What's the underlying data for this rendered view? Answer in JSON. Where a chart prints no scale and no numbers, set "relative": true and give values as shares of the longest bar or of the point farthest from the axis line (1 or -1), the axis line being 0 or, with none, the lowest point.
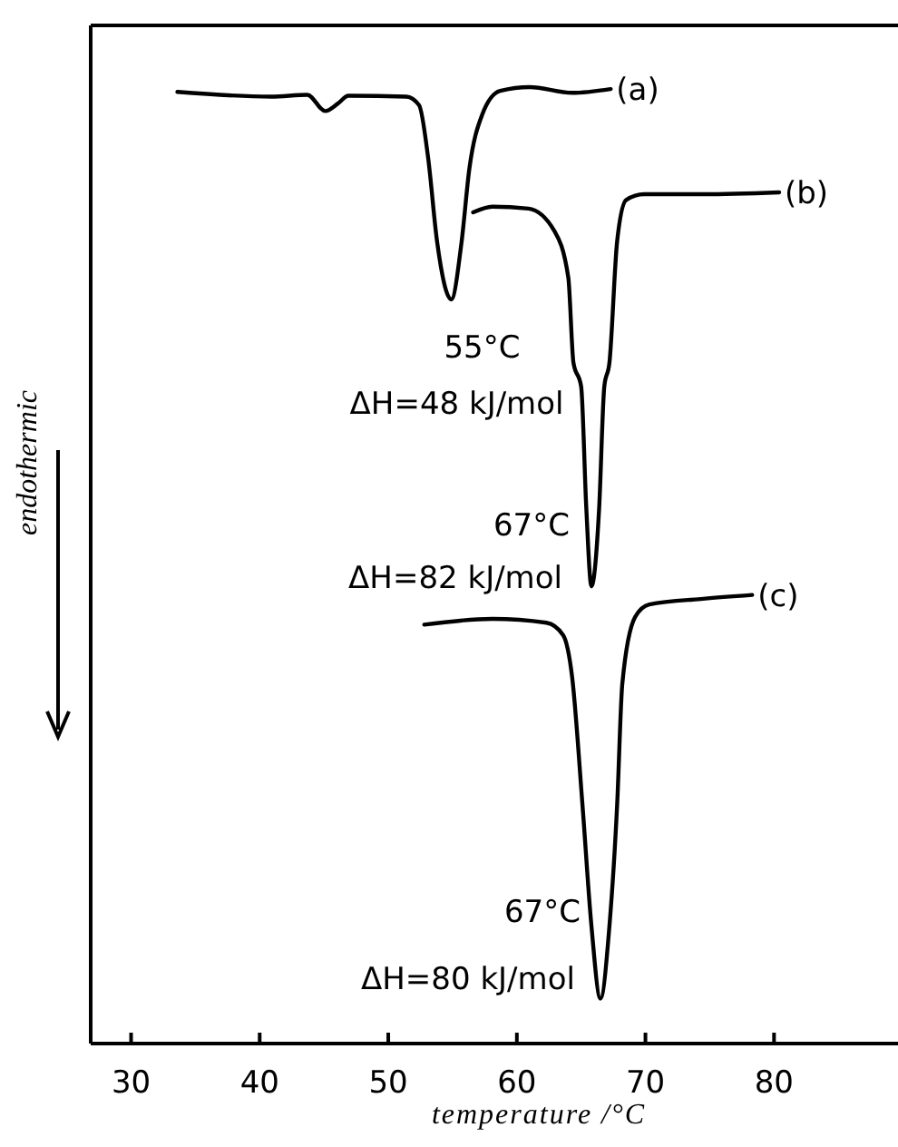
{
  "chart_data": {
    "type": "line",
    "relative": true,
    "xlabel": "temperature /°C",
    "ylabel": "endothermic",
    "xlim": [
      27,
      89.5
    ],
    "xticks": [
      30,
      40,
      50,
      60,
      70,
      80
    ],
    "marker": "none",
    "line_style": "solid",
    "grid": false,
    "series": [
      {
        "name": "(a)",
        "color": "#000000",
        "x": [
          33.6,
          40.9,
          43.7,
          45.1,
          46.1,
          46.9,
          51.4,
          52.4,
          53.1,
          53.8,
          54.9,
          55.7,
          56.3,
          57.3,
          58.7,
          61.0,
          64.3,
          67.3
        ],
        "values": [
          0.995,
          0.99,
          0.992,
          0.975,
          0.983,
          0.991,
          0.99,
          0.981,
          0.926,
          0.838,
          0.778,
          0.838,
          0.914,
          0.971,
          0.996,
          1.0,
          0.994,
          0.998
        ]
      },
      {
        "name": "(b)",
        "color": "#000000",
        "x": [
          56.6,
          58.1,
          60.9,
          62.9,
          64.0,
          64.4,
          65.0,
          65.4,
          65.8,
          66.4,
          66.8,
          67.2,
          67.8,
          68.5,
          69.9,
          74.5,
          80.4
        ],
        "values": [
          0.869,
          0.875,
          0.873,
          0.85,
          0.801,
          0.712,
          0.687,
          0.56,
          0.478,
          0.56,
          0.687,
          0.712,
          0.839,
          0.882,
          0.888,
          0.888,
          0.89
        ]
      },
      {
        "name": "(c)",
        "color": "#000000",
        "x": [
          52.8,
          58.1,
          62.3,
          63.6,
          64.3,
          65.1,
          65.8,
          66.5,
          67.2,
          67.8,
          68.2,
          69.2,
          70.3,
          74.5,
          78.3
        ],
        "values": [
          0.438,
          0.444,
          0.44,
          0.427,
          0.383,
          0.25,
          0.123,
          0.047,
          0.123,
          0.25,
          0.376,
          0.446,
          0.459,
          0.465,
          0.469
        ]
      }
    ],
    "annotations": [
      {
        "text": "55°C\nΔH=48 kJ/mol",
        "x": 54.9,
        "y": 0.778
      },
      {
        "text": "67°C\nΔH=82 kJ/mol",
        "x": 65.8,
        "y": 0.478
      },
      {
        "text": "67°C\nΔH=80 kJ/mol",
        "x": 66.5,
        "y": 0.047
      }
    ]
  }
}
